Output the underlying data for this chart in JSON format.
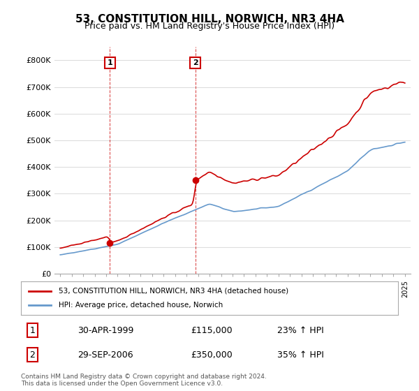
{
  "title": "53, CONSTITUTION HILL, NORWICH, NR3 4HA",
  "subtitle": "Price paid vs. HM Land Registry's House Price Index (HPI)",
  "line1_label": "53, CONSTITUTION HILL, NORWICH, NR3 4HA (detached house)",
  "line2_label": "HPI: Average price, detached house, Norwich",
  "line1_color": "#cc0000",
  "line2_color": "#6699cc",
  "vline_color": "#cc0000",
  "annotation_box_color": "#cc0000",
  "background_color": "#ffffff",
  "grid_color": "#dddddd",
  "ylim": [
    0,
    850000
  ],
  "yticks": [
    0,
    100000,
    200000,
    300000,
    400000,
    500000,
    600000,
    700000,
    800000
  ],
  "ytick_labels": [
    "£0",
    "£100K",
    "£200K",
    "£300K",
    "£400K",
    "£500K",
    "£600K",
    "£700K",
    "£800K"
  ],
  "sale1_year": 1999.33,
  "sale1_price": 115000,
  "sale1_label": "1",
  "sale2_year": 2006.75,
  "sale2_price": 350000,
  "sale2_label": "2",
  "footnote": "Contains HM Land Registry data © Crown copyright and database right 2024.\nThis data is licensed under the Open Government Licence v3.0.",
  "table_row1": [
    "1",
    "30-APR-1999",
    "£115,000",
    "23% ↑ HPI"
  ],
  "table_row2": [
    "2",
    "29-SEP-2006",
    "£350,000",
    "35% ↑ HPI"
  ]
}
